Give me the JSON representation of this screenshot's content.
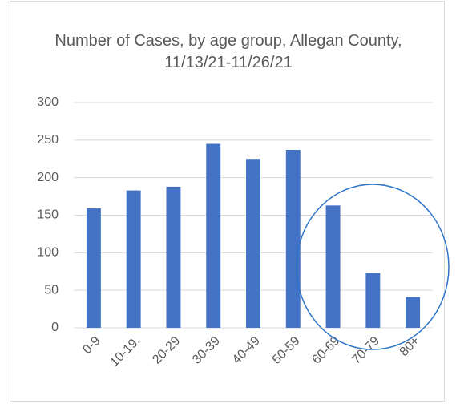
{
  "chart_data": {
    "type": "bar",
    "title": "Number of Cases, by age group, Allegan County, 11/13/21-11/26/21",
    "categories": [
      "0-9",
      "10-19.",
      "20-29",
      "30-39",
      "40-49",
      "50-59",
      "60-69",
      "70-79",
      "80+"
    ],
    "values": [
      159,
      183,
      188,
      245,
      225,
      237,
      163,
      73,
      41
    ],
    "color": "#4472c4",
    "ylim": [
      0,
      300
    ],
    "yticks": [
      0,
      50,
      100,
      150,
      200,
      250,
      300
    ],
    "grid": true
  }
}
